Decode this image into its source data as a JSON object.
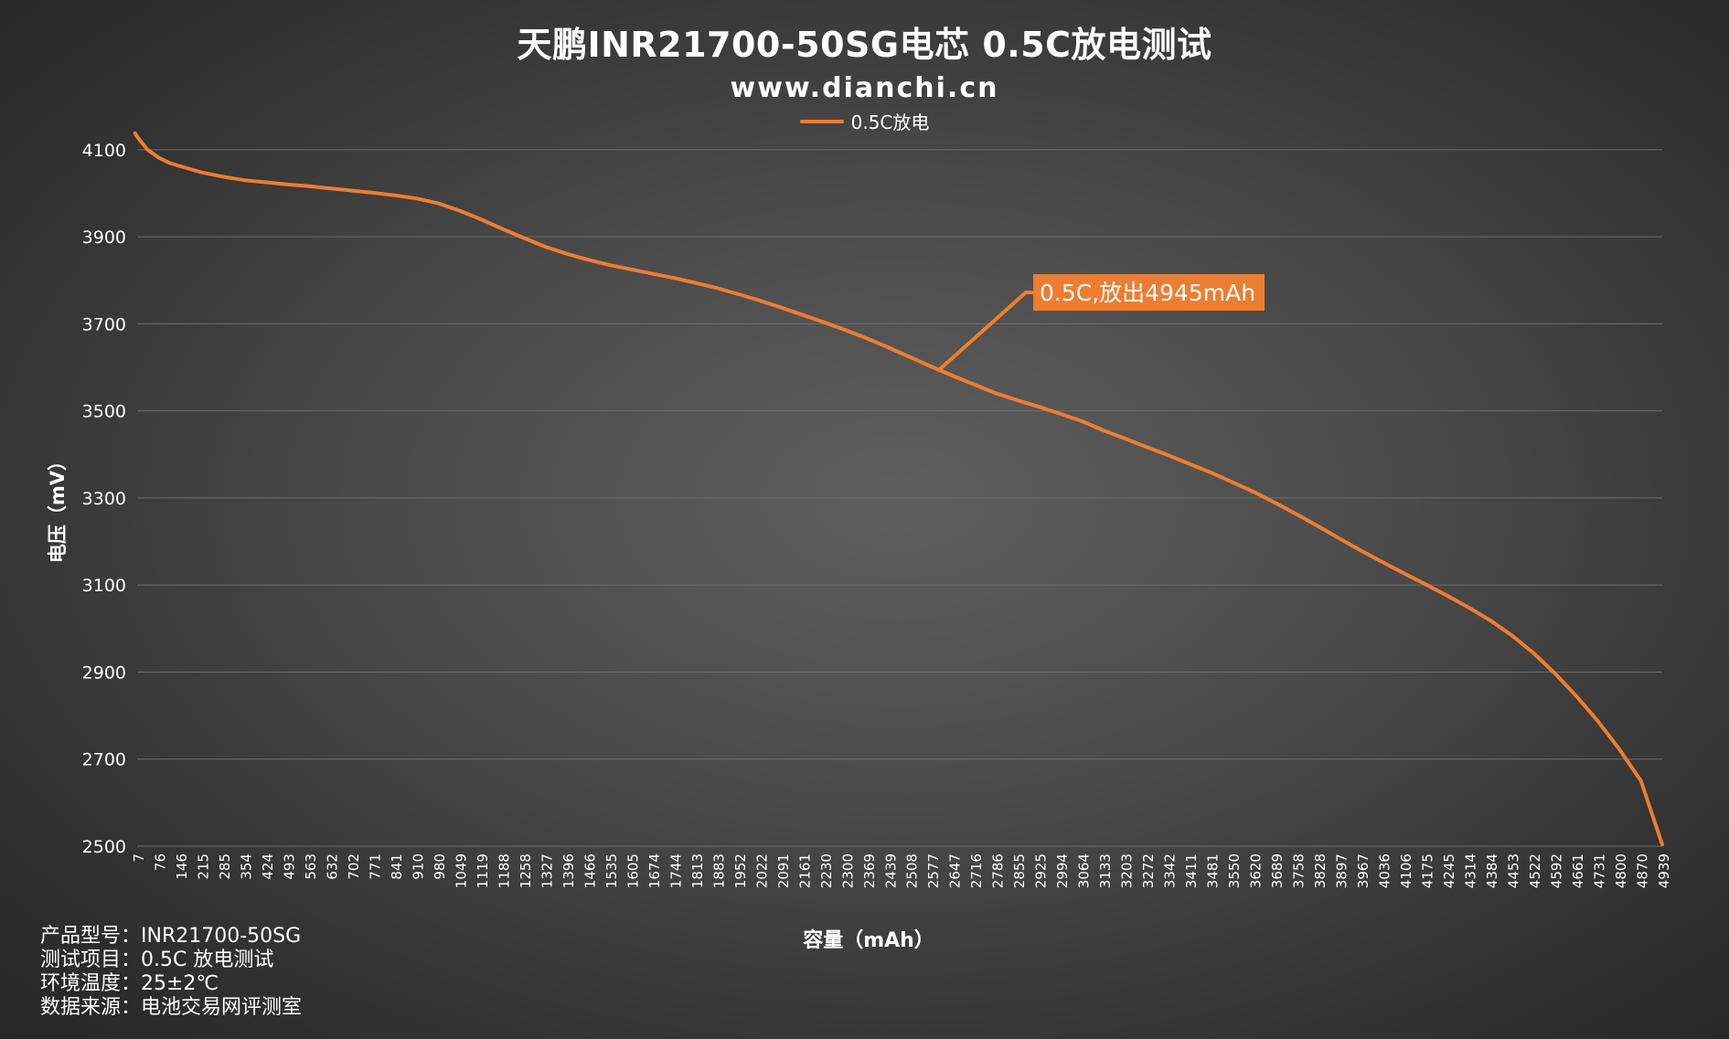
{
  "chart_data": {
    "type": "line",
    "title": "天鹏INR21700-50SG电芯 0.5C放电测试",
    "subtitle": "www.dianchi.cn",
    "xlabel": "容量（mAh）",
    "ylabel": "电压（mV）",
    "ylim": [
      2500,
      4150
    ],
    "yticks": [
      2500,
      2700,
      2900,
      3100,
      3300,
      3500,
      3700,
      3900,
      4100
    ],
    "x_tick_labels": [
      "7",
      "76",
      "146",
      "215",
      "285",
      "354",
      "424",
      "493",
      "563",
      "632",
      "702",
      "771",
      "841",
      "910",
      "980",
      "1049",
      "1119",
      "1188",
      "1258",
      "1327",
      "1396",
      "1466",
      "1535",
      "1605",
      "1674",
      "1744",
      "1813",
      "1883",
      "1952",
      "2022",
      "2091",
      "2161",
      "2230",
      "2300",
      "2369",
      "2439",
      "2508",
      "2577",
      "2647",
      "2716",
      "2786",
      "2855",
      "2925",
      "2994",
      "3064",
      "3133",
      "3203",
      "3272",
      "3342",
      "3411",
      "3481",
      "3550",
      "3620",
      "3689",
      "3758",
      "3828",
      "3897",
      "3967",
      "4036",
      "4106",
      "4175",
      "4245",
      "4314",
      "4384",
      "4453",
      "4522",
      "4592",
      "4661",
      "4731",
      "4800",
      "4870",
      "4939"
    ],
    "grid": true,
    "legend_position": "top-center",
    "series": [
      {
        "name": "0.5C放电",
        "color": "#ED7D31",
        "x": [
          0,
          7,
          40,
          76,
          110,
          146,
          215,
          285,
          354,
          424,
          493,
          563,
          632,
          702,
          771,
          841,
          910,
          980,
          1049,
          1119,
          1188,
          1258,
          1327,
          1396,
          1466,
          1535,
          1605,
          1674,
          1744,
          1813,
          1883,
          1952,
          2022,
          2091,
          2161,
          2230,
          2300,
          2369,
          2439,
          2508,
          2577,
          2647,
          2716,
          2786,
          2855,
          2925,
          2994,
          3064,
          3133,
          3203,
          3272,
          3342,
          3411,
          3481,
          3550,
          3620,
          3689,
          3758,
          3828,
          3897,
          3967,
          4036,
          4106,
          4175,
          4245,
          4314,
          4384,
          4453,
          4522,
          4592,
          4661,
          4731,
          4800,
          4870,
          4939
        ],
        "y": [
          4138,
          4130,
          4100,
          4082,
          4070,
          4062,
          4048,
          4038,
          4030,
          4025,
          4020,
          4016,
          4011,
          4006,
          4001,
          3995,
          3988,
          3977,
          3960,
          3940,
          3918,
          3897,
          3877,
          3861,
          3847,
          3835,
          3825,
          3815,
          3805,
          3794,
          3782,
          3768,
          3753,
          3737,
          3720,
          3703,
          3685,
          3666,
          3645,
          3623,
          3601,
          3580,
          3560,
          3540,
          3524,
          3509,
          3493,
          3476,
          3455,
          3436,
          3417,
          3398,
          3378,
          3358,
          3336,
          3313,
          3288,
          3262,
          3234,
          3206,
          3178,
          3152,
          3126,
          3101,
          3075,
          3048,
          3018,
          2984,
          2944,
          2897,
          2845,
          2787,
          2723,
          2650,
          2504
        ]
      }
    ],
    "annotations": [
      {
        "text": "0.5C,放出4945mAh",
        "x": 2600,
        "y": 3594
      }
    ]
  },
  "notes": {
    "model": "产品型号：INR21700-50SG",
    "test_item": "测试项目：0.5C 放电测试",
    "environment": "环境温度：25±2℃",
    "source": "数据来源：电池交易网评测室"
  }
}
